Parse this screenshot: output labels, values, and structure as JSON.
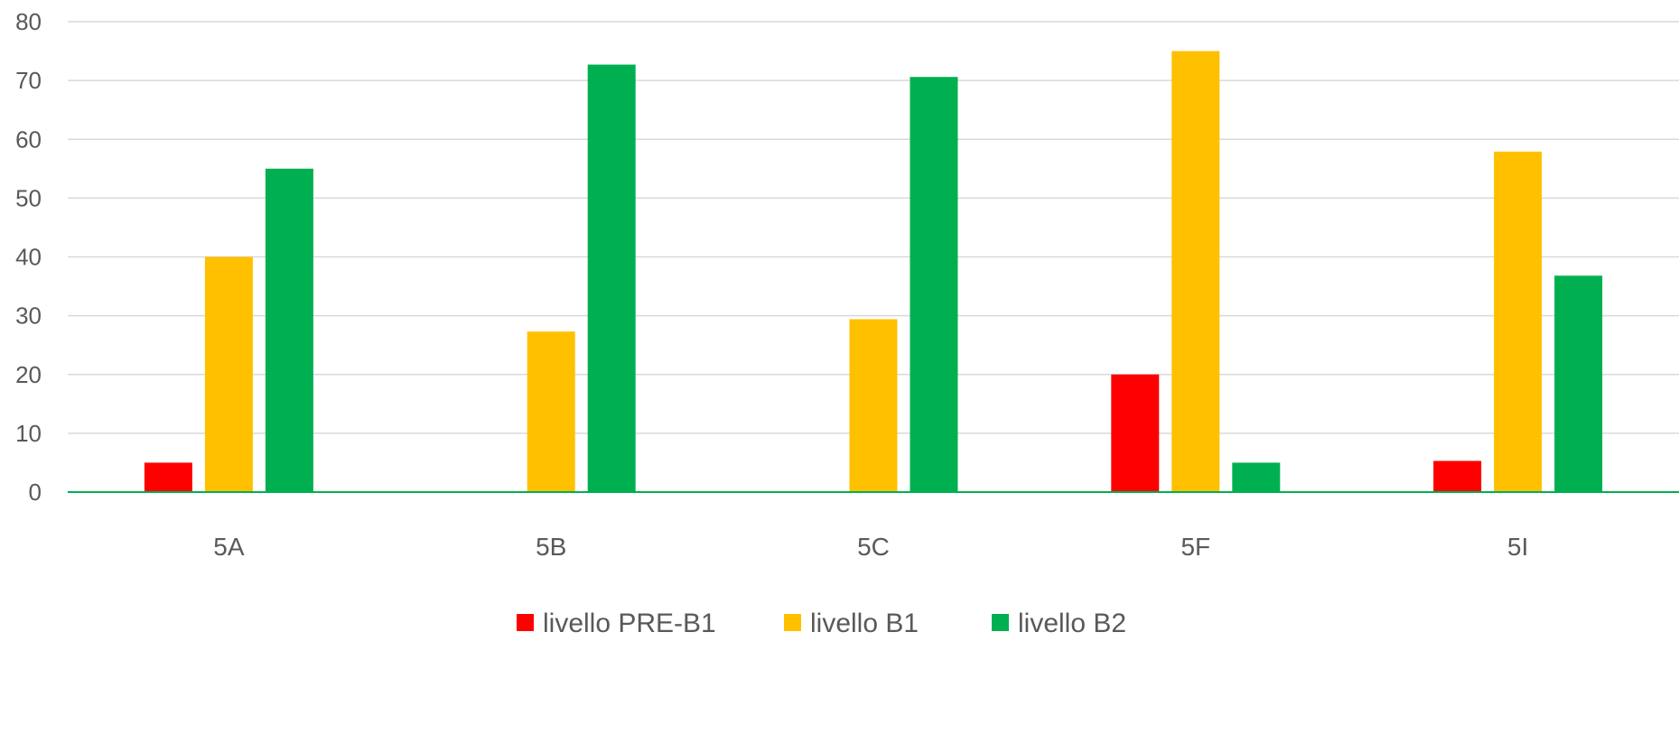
{
  "chart_data": {
    "type": "bar",
    "title": "",
    "xlabel": "",
    "ylabel": "",
    "ylim": [
      0,
      80
    ],
    "yticks": [
      0,
      10,
      20,
      30,
      40,
      50,
      60,
      70,
      80
    ],
    "grid": true,
    "legend_position": "bottom",
    "categories": [
      "5A",
      "5B",
      "5C",
      "5F",
      "5I"
    ],
    "series": [
      {
        "name": "livello PRE-B1",
        "color": "#FF0000",
        "values": [
          5,
          0,
          0,
          20,
          5.3
        ]
      },
      {
        "name": "livello B1",
        "color": "#FFC000",
        "values": [
          40,
          27.3,
          29.4,
          75,
          57.9
        ]
      },
      {
        "name": "livello B2",
        "color": "#00B050",
        "values": [
          55,
          72.7,
          70.6,
          5,
          36.8
        ]
      }
    ]
  }
}
